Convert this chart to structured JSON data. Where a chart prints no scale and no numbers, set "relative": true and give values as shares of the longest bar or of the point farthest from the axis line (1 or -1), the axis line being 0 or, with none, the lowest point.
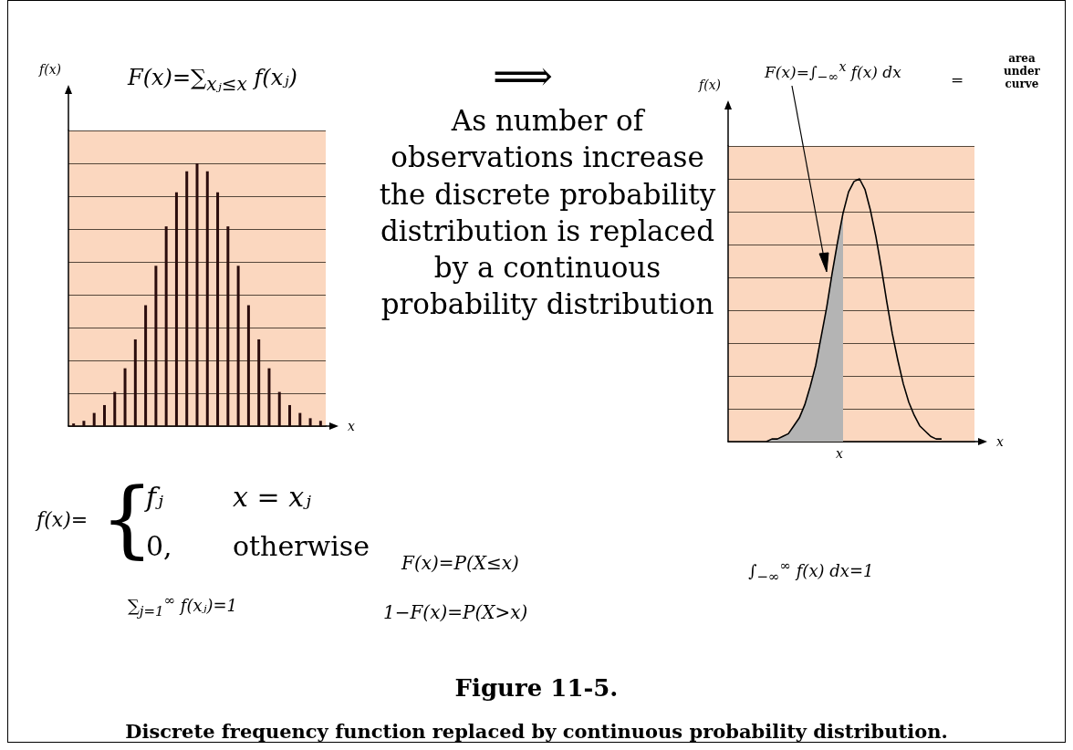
{
  "chart_data": [
    {
      "type": "bar",
      "relative": true,
      "grid": "y",
      "xlabel": "x",
      "ylabel": "f(x)",
      "color": "#2a0c0c",
      "categories": [
        null,
        null,
        null,
        null,
        null,
        null,
        null,
        null,
        null,
        null,
        null,
        null,
        null,
        null,
        null,
        null,
        null,
        null,
        null,
        null,
        null,
        null,
        null,
        null,
        null
      ],
      "values": [
        0.01,
        0.02,
        0.05,
        0.08,
        0.13,
        0.22,
        0.33,
        0.46,
        0.61,
        0.76,
        0.89,
        0.97,
        1,
        0.97,
        0.89,
        0.76,
        0.61,
        0.46,
        0.33,
        0.22,
        0.13,
        0.08,
        0.05,
        0.03,
        0.02
      ],
      "annotations": [
        "F(x)=∑$_{xⱼ≤x}$ f(xⱼ)",
        "f(x)=",
        "{",
        "fⱼ",
        "x = xⱼ",
        "0,",
        "otherwise",
        "∑$_{j=1}$$^{∞}$ f(xⱼ)=1",
        "F(x)=P(X≤x)",
        "1−F(x)=P(X>x)",
        "⟹",
        "As number of\nobservations increase\nthe discrete probability\ndistribution is replaced\nby a continuous\nprobability distribution",
        "Figure 11-5.",
        "Discrete frequency function replaced by continuous probability distribution."
      ]
    },
    {
      "type": "line",
      "relative": true,
      "grid": "y",
      "xlabel": "x",
      "ylabel": "f(x)",
      "marker": "none",
      "categories": [
        null,
        null,
        null,
        null,
        null,
        null,
        null,
        null,
        null,
        null,
        null,
        null,
        null,
        null,
        null,
        null,
        null,
        null,
        null,
        null,
        null,
        null,
        null,
        null,
        null,
        null,
        null,
        null,
        null,
        null,
        null,
        null,
        null
      ],
      "series": [
        {
          "type": "area",
          "color": "#b4b4b4",
          "values": [
            0,
            0.01,
            0.01,
            0.02,
            0.03,
            0.06,
            0.09,
            0.14,
            0.21,
            0.29,
            0.4,
            0.51,
            0.64,
            0.76,
            0.87,
            null,
            null,
            null,
            null,
            null,
            null,
            null,
            null,
            null,
            null,
            null,
            null,
            null,
            null,
            null,
            null,
            null,
            null
          ]
        },
        {
          "color": "#000000",
          "values": [
            0,
            0.01,
            0.01,
            0.02,
            0.03,
            0.06,
            0.09,
            0.14,
            0.21,
            0.29,
            0.4,
            0.51,
            0.64,
            0.76,
            0.87,
            0.95,
            0.99,
            1,
            0.96,
            0.88,
            0.78,
            0.66,
            0.53,
            0.41,
            0.31,
            0.22,
            0.15,
            0.1,
            0.06,
            0.04,
            0.02,
            0.01,
            0.01
          ]
        }
      ],
      "annotations": [
        "F(x)=∫$_{−∞}$$^{x}$ f(x) dx",
        "=",
        "area\nunder\ncurve",
        "∫$_{−∞}$$^{∞}$ f(x) dx=1",
        "x"
      ]
    }
  ]
}
